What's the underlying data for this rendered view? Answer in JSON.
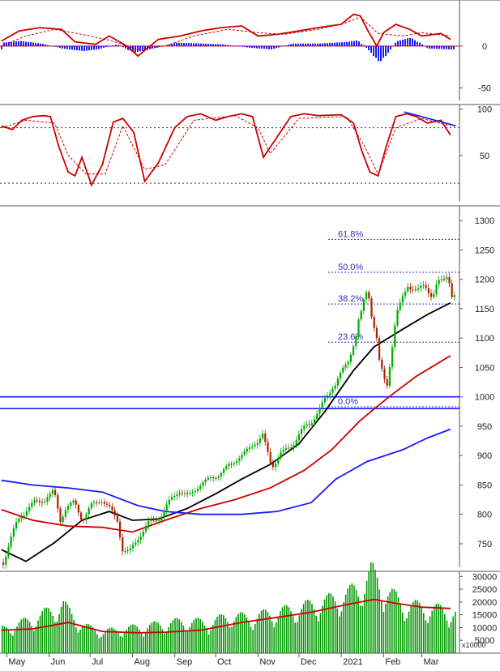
{
  "chart_data": [
    {
      "type": "line",
      "panel": "macd",
      "yticks": [
        0,
        -50
      ],
      "ylim": [
        -65,
        55
      ],
      "grid": false,
      "series": [
        {
          "role": "macd",
          "color": "#cc0000",
          "x": [
            "2020-04-27",
            "2020-05-10",
            "2020-05-25",
            "2020-06-10",
            "2020-06-20",
            "2020-07-05",
            "2020-07-15",
            "2020-07-28",
            "2020-08-05",
            "2020-08-20",
            "2020-09-05",
            "2020-09-20",
            "2020-10-05",
            "2020-10-20",
            "2020-11-01",
            "2020-11-15",
            "2020-12-01",
            "2020-12-15",
            "2021-01-01",
            "2021-01-10",
            "2021-01-15",
            "2021-01-20",
            "2021-01-27",
            "2021-02-01",
            "2021-02-10",
            "2021-02-20",
            "2021-03-01",
            "2021-03-15",
            "2021-03-22"
          ],
          "values": [
            6,
            18,
            22,
            20,
            5,
            2,
            12,
            0,
            -12,
            8,
            12,
            18,
            22,
            24,
            12,
            14,
            18,
            22,
            26,
            38,
            36,
            20,
            0,
            16,
            26,
            20,
            12,
            15,
            8
          ]
        },
        {
          "role": "signal",
          "color": "#cc0000",
          "dashed": true,
          "x": [
            "2020-04-27",
            "2020-05-15",
            "2020-06-05",
            "2020-06-25",
            "2020-07-15",
            "2020-08-05",
            "2020-08-25",
            "2020-09-15",
            "2020-10-10",
            "2020-11-01",
            "2020-11-20",
            "2020-12-15",
            "2021-01-05",
            "2021-01-15",
            "2021-01-28",
            "2021-02-15",
            "2021-03-01",
            "2021-03-22"
          ],
          "values": [
            0,
            12,
            20,
            14,
            7,
            -4,
            0,
            12,
            20,
            16,
            14,
            20,
            28,
            35,
            15,
            12,
            16,
            12
          ]
        },
        {
          "role": "histogram",
          "color": "#1a1aff",
          "x": [
            "2020-04-27",
            "2020-05-10",
            "2020-05-25",
            "2020-06-10",
            "2020-06-25",
            "2020-07-05",
            "2020-07-20",
            "2020-08-01",
            "2020-08-15",
            "2020-09-01",
            "2020-09-20",
            "2020-10-05",
            "2020-10-25",
            "2020-11-10",
            "2020-11-25",
            "2020-12-15",
            "2021-01-05",
            "2021-01-12",
            "2021-01-22",
            "2021-01-28",
            "2021-02-10",
            "2021-02-20",
            "2021-03-05",
            "2021-03-22"
          ],
          "values": [
            4,
            6,
            3,
            -3,
            -6,
            -4,
            2,
            -8,
            -3,
            4,
            3,
            2,
            -2,
            -4,
            3,
            3,
            5,
            7,
            -8,
            -20,
            6,
            10,
            -3,
            -4
          ]
        }
      ]
    },
    {
      "type": "line",
      "panel": "stochastic",
      "yticks": [
        100,
        50
      ],
      "ylim": [
        0,
        105
      ],
      "hlines_dotted": [
        80,
        20
      ],
      "series": [
        {
          "role": "k",
          "color": "#cc0000",
          "x": [
            "2020-04-27",
            "2020-05-05",
            "2020-05-12",
            "2020-05-20",
            "2020-05-28",
            "2020-06-02",
            "2020-06-08",
            "2020-06-15",
            "2020-06-20",
            "2020-06-25",
            "2020-07-02",
            "2020-07-10",
            "2020-07-18",
            "2020-07-25",
            "2020-08-02",
            "2020-08-10",
            "2020-08-20",
            "2020-09-01",
            "2020-09-10",
            "2020-09-20",
            "2020-10-01",
            "2020-10-10",
            "2020-10-20",
            "2020-10-28",
            "2020-11-05",
            "2020-11-15",
            "2020-11-25",
            "2020-12-05",
            "2020-12-15",
            "2021-01-01",
            "2021-01-10",
            "2021-01-16",
            "2021-01-22",
            "2021-01-28",
            "2021-02-03",
            "2021-02-10",
            "2021-02-18",
            "2021-02-25",
            "2021-03-05",
            "2021-03-15",
            "2021-03-22"
          ],
          "values": [
            82,
            78,
            88,
            92,
            93,
            92,
            60,
            32,
            28,
            48,
            18,
            40,
            86,
            90,
            75,
            22,
            42,
            80,
            92,
            95,
            88,
            92,
            95,
            92,
            48,
            70,
            92,
            95,
            93,
            94,
            85,
            55,
            32,
            28,
            60,
            92,
            95,
            92,
            85,
            88,
            72
          ]
        },
        {
          "role": "d",
          "color": "#cc0000",
          "dashed": true,
          "x": [
            "2020-04-27",
            "2020-05-15",
            "2020-06-05",
            "2020-06-15",
            "2020-06-28",
            "2020-07-12",
            "2020-07-25",
            "2020-08-10",
            "2020-08-25",
            "2020-09-15",
            "2020-10-15",
            "2020-11-01",
            "2020-11-10",
            "2020-12-01",
            "2021-01-05",
            "2021-01-18",
            "2021-01-28",
            "2021-02-10",
            "2021-03-01",
            "2021-03-22"
          ],
          "values": [
            80,
            88,
            85,
            50,
            30,
            30,
            82,
            35,
            40,
            88,
            93,
            80,
            52,
            90,
            92,
            60,
            30,
            80,
            90,
            82
          ]
        },
        {
          "role": "trendline",
          "color": "#1a1aff",
          "x": [
            "2021-02-16",
            "2021-03-26"
          ],
          "values": [
            97,
            82
          ]
        }
      ]
    },
    {
      "type": "candlestick",
      "panel": "price",
      "yticks": [
        1300,
        1250,
        1200,
        1150,
        1100,
        1050,
        1000,
        950,
        900,
        850,
        800,
        750
      ],
      "ylim": [
        710,
        1325
      ],
      "fibonacci": [
        {
          "label": "61.8%",
          "value": 1268
        },
        {
          "label": "50.0%",
          "value": 1212
        },
        {
          "label": "38.2%",
          "value": 1158
        },
        {
          "label": "23.6%",
          "value": 1093
        },
        {
          "label": "0.0%",
          "value": 983
        }
      ],
      "horizontal_lines": [
        {
          "value": 1000,
          "color": "#1a1aff"
        },
        {
          "value": 980,
          "color": "#1a1aff"
        }
      ],
      "close": {
        "x": [
          "2020-04-27",
          "2020-05-03",
          "2020-05-08",
          "2020-05-14",
          "2020-05-20",
          "2020-05-28",
          "2020-06-03",
          "2020-06-08",
          "2020-06-12",
          "2020-06-18",
          "2020-06-24",
          "2020-07-01",
          "2020-07-08",
          "2020-07-14",
          "2020-07-20",
          "2020-07-24",
          "2020-07-28",
          "2020-08-04",
          "2020-08-12",
          "2020-08-20",
          "2020-08-28",
          "2020-09-03",
          "2020-09-10",
          "2020-09-18",
          "2020-09-25",
          "2020-10-02",
          "2020-10-08",
          "2020-10-15",
          "2020-10-22",
          "2020-10-28",
          "2020-11-03",
          "2020-11-10",
          "2020-11-17",
          "2020-11-24",
          "2020-12-01",
          "2020-12-08",
          "2020-12-15",
          "2020-12-22",
          "2020-12-29",
          "2021-01-05",
          "2021-01-11",
          "2021-01-15",
          "2021-01-19",
          "2021-01-22",
          "2021-01-26",
          "2021-01-28",
          "2021-02-02",
          "2021-02-09",
          "2021-02-18",
          "2021-02-24",
          "2021-03-02",
          "2021-03-08",
          "2021-03-12",
          "2021-03-16",
          "2021-03-19",
          "2021-03-22"
        ],
        "values": [
          718,
          760,
          790,
          808,
          820,
          825,
          840,
          790,
          810,
          820,
          790,
          815,
          825,
          810,
          790,
          740,
          735,
          760,
          785,
          795,
          825,
          840,
          830,
          850,
          860,
          868,
          878,
          895,
          905,
          920,
          935,
          880,
          905,
          915,
          940,
          955,
          980,
          1005,
          1035,
          1060,
          1105,
          1155,
          1185,
          1140,
          1100,
          1060,
          1020,
          1140,
          1190,
          1180,
          1190,
          1170,
          1195,
          1200,
          1210,
          1172
        ]
      },
      "series": [
        {
          "role": "ma-short",
          "color": "#000000",
          "x": [
            "2020-04-27",
            "2020-05-15",
            "2020-06-05",
            "2020-06-25",
            "2020-07-15",
            "2020-08-01",
            "2020-08-20",
            "2020-09-10",
            "2020-10-01",
            "2020-10-20",
            "2020-11-10",
            "2020-12-01",
            "2020-12-20",
            "2021-01-10",
            "2021-01-25",
            "2021-02-15",
            "2021-03-05",
            "2021-03-22"
          ],
          "values": [
            740,
            720,
            752,
            790,
            805,
            790,
            792,
            810,
            835,
            860,
            885,
            920,
            975,
            1045,
            1085,
            1115,
            1140,
            1160
          ]
        },
        {
          "role": "ma-medium",
          "color": "#cc0000",
          "x": [
            "2020-04-27",
            "2020-05-20",
            "2020-06-15",
            "2020-07-10",
            "2020-08-01",
            "2020-08-25",
            "2020-09-20",
            "2020-10-15",
            "2020-11-10",
            "2020-12-05",
            "2020-12-25",
            "2021-01-15",
            "2021-02-05",
            "2021-02-25",
            "2021-03-22"
          ],
          "values": [
            808,
            790,
            780,
            778,
            770,
            790,
            810,
            825,
            845,
            875,
            910,
            960,
            1000,
            1035,
            1070
          ]
        },
        {
          "role": "ma-long",
          "color": "#1a1aff",
          "x": [
            "2020-04-27",
            "2020-05-20",
            "2020-06-15",
            "2020-07-10",
            "2020-08-05",
            "2020-08-25",
            "2020-09-20",
            "2020-10-20",
            "2020-11-15",
            "2020-12-10",
            "2020-12-28",
            "2021-01-20",
            "2021-02-15",
            "2021-03-05",
            "2021-03-22"
          ],
          "values": [
            858,
            850,
            845,
            838,
            815,
            805,
            800,
            800,
            805,
            820,
            860,
            890,
            910,
            930,
            945
          ]
        }
      ]
    },
    {
      "type": "bar",
      "panel": "volume",
      "yticks": [
        30000,
        25000,
        20000,
        15000,
        10000,
        5000
      ],
      "ylim": [
        0,
        32000
      ],
      "unit_label": "x10000",
      "bar_color": "#009900",
      "volume": {
        "x": [
          "2020-04-27",
          "2020-05-10",
          "2020-05-25",
          "2020-06-10",
          "2020-06-25",
          "2020-07-10",
          "2020-07-25",
          "2020-08-10",
          "2020-08-25",
          "2020-09-10",
          "2020-09-25",
          "2020-10-10",
          "2020-10-25",
          "2020-11-10",
          "2020-11-25",
          "2020-12-10",
          "2020-12-25",
          "2021-01-05",
          "2021-01-15",
          "2021-01-22",
          "2021-01-28",
          "2021-02-05",
          "2021-02-15",
          "2021-03-01",
          "2021-03-15",
          "2021-03-22"
        ],
        "values": [
          9000,
          11000,
          14000,
          18000,
          10000,
          8000,
          9000,
          10000,
          11000,
          12000,
          11000,
          14000,
          13000,
          15000,
          16000,
          18000,
          20000,
          22000,
          25000,
          30000,
          26000,
          22000,
          18000,
          17000,
          16000,
          15000
        ]
      },
      "series": [
        {
          "role": "volume-ma",
          "color": "#cc0000",
          "x": [
            "2020-04-27",
            "2020-05-20",
            "2020-06-15",
            "2020-07-10",
            "2020-08-05",
            "2020-08-25",
            "2020-09-20",
            "2020-10-20",
            "2020-11-15",
            "2020-12-10",
            "2021-01-05",
            "2021-01-25",
            "2021-02-10",
            "2021-03-01",
            "2021-03-22"
          ],
          "values": [
            9000,
            9500,
            12000,
            8500,
            8000,
            8200,
            9000,
            12000,
            14000,
            16000,
            19000,
            21000,
            19500,
            18000,
            17500
          ]
        }
      ]
    }
  ],
  "x_axis": {
    "months": [
      {
        "label": "May",
        "date": "2020-05-01"
      },
      {
        "label": "Jun",
        "date": "2020-06-01"
      },
      {
        "label": "Jul",
        "date": "2020-07-01"
      },
      {
        "label": "Aug",
        "date": "2020-08-01"
      },
      {
        "label": "Sep",
        "date": "2020-09-01"
      },
      {
        "label": "Oct",
        "date": "2020-10-01"
      },
      {
        "label": "Nov",
        "date": "2020-11-01"
      },
      {
        "label": "Dec",
        "date": "2020-12-01"
      },
      {
        "label": "2021",
        "date": "2021-01-01"
      },
      {
        "label": "Feb",
        "date": "2021-02-01"
      },
      {
        "label": "Mar",
        "date": "2021-03-01"
      }
    ],
    "range": [
      "2020-04-26",
      "2021-03-28"
    ]
  }
}
